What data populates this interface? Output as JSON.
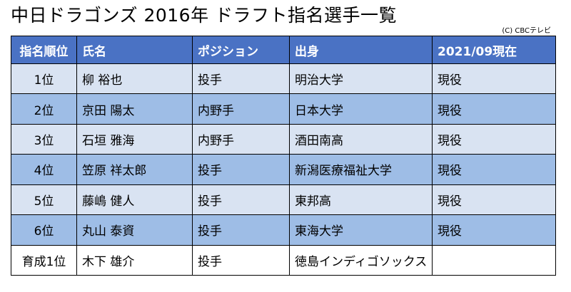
{
  "title": "中日ドラゴンズ 2016年 ドラフト指名選手一覧",
  "credit": "(C) CBCテレビ",
  "table": {
    "headers": [
      "指名順位",
      "氏名",
      "ポジション",
      "出身",
      "2021/09現在"
    ],
    "rows": [
      [
        "1位",
        "柳 裕也",
        "投手",
        "明治大学",
        "現役"
      ],
      [
        "2位",
        "京田 陽太",
        "内野手",
        "日本大学",
        "現役"
      ],
      [
        "3位",
        "石垣 雅海",
        "内野手",
        "酒田南高",
        "現役"
      ],
      [
        "4位",
        "笠原 祥太郎",
        "投手",
        "新潟医療福祉大学",
        "現役"
      ],
      [
        "5位",
        "藤嶋 健人",
        "投手",
        "東邦高",
        "現役"
      ],
      [
        "6位",
        "丸山 泰資",
        "投手",
        "東海大学",
        "現役"
      ],
      [
        "育成1位",
        "木下 雄介",
        "投手",
        "徳島インディゴソックス",
        ""
      ]
    ]
  },
  "colors": {
    "header_bg": "#4a72c4",
    "row_light": "#d9e3f2",
    "row_dark": "#9ebde6",
    "row_last": "#ffffff"
  }
}
